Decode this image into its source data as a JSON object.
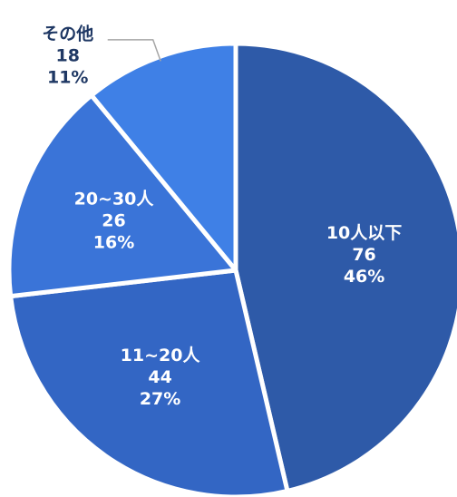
{
  "chart_data": {
    "type": "pie",
    "title": "",
    "start_angle_deg": 0,
    "direction": "clockwise",
    "slices": [
      {
        "label": "10人以下",
        "value": 76,
        "percent": "46%",
        "color": "#2e5aa8"
      },
      {
        "label": "11~20人",
        "value": 44,
        "percent": "27%",
        "color": "#3366c4"
      },
      {
        "label": "20~30人",
        "value": 26,
        "percent": "16%",
        "color": "#3a74d8"
      },
      {
        "label": "その他",
        "value": 18,
        "percent": "11%",
        "color": "#3f80e6"
      }
    ],
    "separator_color": "#ffffff",
    "label_color_inside": "#ffffff",
    "label_color_outside": "#1f3864",
    "leader_line_color": "#a6a6a6"
  }
}
